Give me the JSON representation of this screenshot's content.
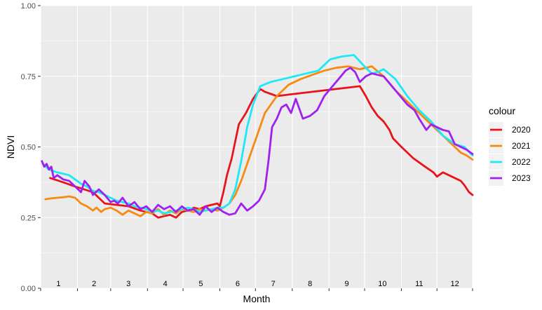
{
  "chart_data": {
    "type": "line",
    "xlabel": "Month",
    "ylabel": "NDVI",
    "xlim": [
      1,
      365
    ],
    "ylim": [
      0,
      1
    ],
    "yticks": [
      0.0,
      0.25,
      0.5,
      0.75,
      1.0
    ],
    "ytick_labels": [
      "0.00",
      "0.25",
      "0.50",
      "0.75",
      "1.00"
    ],
    "month_labels": [
      "1",
      "2",
      "3",
      "4",
      "5",
      "6",
      "7",
      "8",
      "9",
      "10",
      "11",
      "12"
    ],
    "month_label_days": [
      16,
      46,
      75,
      106,
      136,
      167,
      197,
      228,
      259,
      289,
      320,
      350
    ],
    "x_major_days": [
      1,
      32,
      60,
      91,
      121,
      152,
      182,
      213,
      244,
      274,
      305,
      335,
      365
    ],
    "grid": true,
    "legend_position": "right",
    "legend_title": "colour",
    "series": [
      {
        "name": "2020",
        "color": "#e8141c",
        "x": [
          9,
          20,
          30,
          45,
          55,
          65,
          75,
          85,
          95,
          100,
          105,
          110,
          115,
          120,
          125,
          130,
          135,
          140,
          145,
          150,
          152,
          155,
          158,
          162,
          168,
          174,
          180,
          186,
          190,
          200,
          210,
          220,
          230,
          240,
          250,
          260,
          270,
          275,
          280,
          285,
          290,
          295,
          298,
          305,
          315,
          325,
          332,
          335,
          340,
          345,
          350,
          355,
          358,
          362,
          365
        ],
        "y": [
          0.39,
          0.375,
          0.36,
          0.34,
          0.3,
          0.295,
          0.29,
          0.275,
          0.265,
          0.25,
          0.255,
          0.26,
          0.25,
          0.27,
          0.275,
          0.285,
          0.28,
          0.29,
          0.295,
          0.3,
          0.29,
          0.34,
          0.4,
          0.46,
          0.58,
          0.62,
          0.67,
          0.705,
          0.695,
          0.68,
          0.685,
          0.69,
          0.695,
          0.7,
          0.705,
          0.71,
          0.715,
          0.68,
          0.64,
          0.61,
          0.59,
          0.56,
          0.53,
          0.5,
          0.46,
          0.43,
          0.41,
          0.395,
          0.41,
          0.4,
          0.39,
          0.38,
          0.365,
          0.34,
          0.33
        ]
      },
      {
        "name": "2021",
        "color": "#f78a11",
        "x": [
          5,
          10,
          15,
          20,
          25,
          30,
          35,
          40,
          45,
          48,
          52,
          55,
          60,
          65,
          70,
          75,
          80,
          85,
          90,
          95,
          100,
          105,
          110,
          115,
          120,
          125,
          130,
          135,
          140,
          145,
          150,
          155,
          160,
          165,
          170,
          175,
          180,
          185,
          190,
          200,
          210,
          220,
          230,
          240,
          250,
          260,
          270,
          275,
          280,
          290,
          300,
          310,
          320,
          330,
          340,
          350,
          355,
          360,
          365
        ],
        "y": [
          0.315,
          0.318,
          0.32,
          0.322,
          0.325,
          0.32,
          0.3,
          0.29,
          0.275,
          0.285,
          0.27,
          0.28,
          0.285,
          0.275,
          0.26,
          0.275,
          0.265,
          0.255,
          0.27,
          0.265,
          0.28,
          0.26,
          0.275,
          0.265,
          0.28,
          0.275,
          0.27,
          0.28,
          0.275,
          0.28,
          0.275,
          0.285,
          0.3,
          0.33,
          0.38,
          0.44,
          0.5,
          0.56,
          0.62,
          0.68,
          0.72,
          0.74,
          0.755,
          0.77,
          0.78,
          0.785,
          0.775,
          0.78,
          0.785,
          0.75,
          0.7,
          0.66,
          0.62,
          0.58,
          0.54,
          0.5,
          0.48,
          0.47,
          0.455
        ]
      },
      {
        "name": "2022",
        "color": "#1de9f6",
        "x": [
          3,
          8,
          15,
          20,
          25,
          30,
          35,
          40,
          45,
          50,
          55,
          60,
          65,
          70,
          75,
          80,
          85,
          90,
          95,
          100,
          105,
          110,
          115,
          120,
          125,
          130,
          135,
          140,
          145,
          150,
          155,
          160,
          165,
          170,
          175,
          180,
          186,
          195,
          205,
          215,
          225,
          235,
          245,
          255,
          265,
          275,
          280,
          285,
          290,
          300,
          310,
          320,
          330,
          340,
          350,
          358,
          365
        ],
        "y": [
          0.44,
          0.42,
          0.41,
          0.405,
          0.4,
          0.385,
          0.37,
          0.36,
          0.345,
          0.34,
          0.33,
          0.32,
          0.31,
          0.305,
          0.3,
          0.29,
          0.285,
          0.28,
          0.27,
          0.275,
          0.265,
          0.27,
          0.275,
          0.28,
          0.285,
          0.28,
          0.27,
          0.275,
          0.28,
          0.285,
          0.285,
          0.3,
          0.35,
          0.45,
          0.57,
          0.65,
          0.715,
          0.73,
          0.74,
          0.75,
          0.76,
          0.77,
          0.81,
          0.82,
          0.825,
          0.78,
          0.76,
          0.765,
          0.775,
          0.74,
          0.68,
          0.63,
          0.59,
          0.54,
          0.51,
          0.5,
          0.47
        ]
      },
      {
        "name": "2023",
        "color": "#a020f0",
        "x": [
          2,
          4,
          6,
          8,
          10,
          12,
          15,
          20,
          25,
          30,
          35,
          38,
          42,
          45,
          50,
          55,
          60,
          63,
          66,
          70,
          75,
          80,
          85,
          90,
          95,
          100,
          105,
          110,
          115,
          120,
          125,
          130,
          135,
          140,
          145,
          150,
          155,
          160,
          165,
          170,
          175,
          180,
          185,
          190,
          193,
          196,
          200,
          204,
          208,
          212,
          216,
          222,
          228,
          234,
          240,
          246,
          252,
          258,
          262,
          266,
          270,
          275,
          280,
          290,
          300,
          310,
          316,
          320,
          326,
          330,
          335,
          340,
          345,
          350,
          355,
          360,
          365
        ],
        "y": [
          0.45,
          0.43,
          0.44,
          0.42,
          0.43,
          0.39,
          0.4,
          0.385,
          0.38,
          0.36,
          0.34,
          0.38,
          0.36,
          0.33,
          0.35,
          0.33,
          0.305,
          0.31,
          0.3,
          0.32,
          0.29,
          0.305,
          0.28,
          0.29,
          0.27,
          0.295,
          0.28,
          0.29,
          0.27,
          0.29,
          0.275,
          0.28,
          0.26,
          0.29,
          0.27,
          0.285,
          0.27,
          0.26,
          0.265,
          0.3,
          0.275,
          0.29,
          0.31,
          0.35,
          0.45,
          0.57,
          0.6,
          0.64,
          0.65,
          0.62,
          0.67,
          0.6,
          0.61,
          0.63,
          0.68,
          0.71,
          0.74,
          0.77,
          0.78,
          0.765,
          0.73,
          0.75,
          0.76,
          0.75,
          0.7,
          0.65,
          0.63,
          0.6,
          0.56,
          0.58,
          0.57,
          0.56,
          0.555,
          0.51,
          0.5,
          0.49,
          0.475
        ]
      }
    ]
  }
}
